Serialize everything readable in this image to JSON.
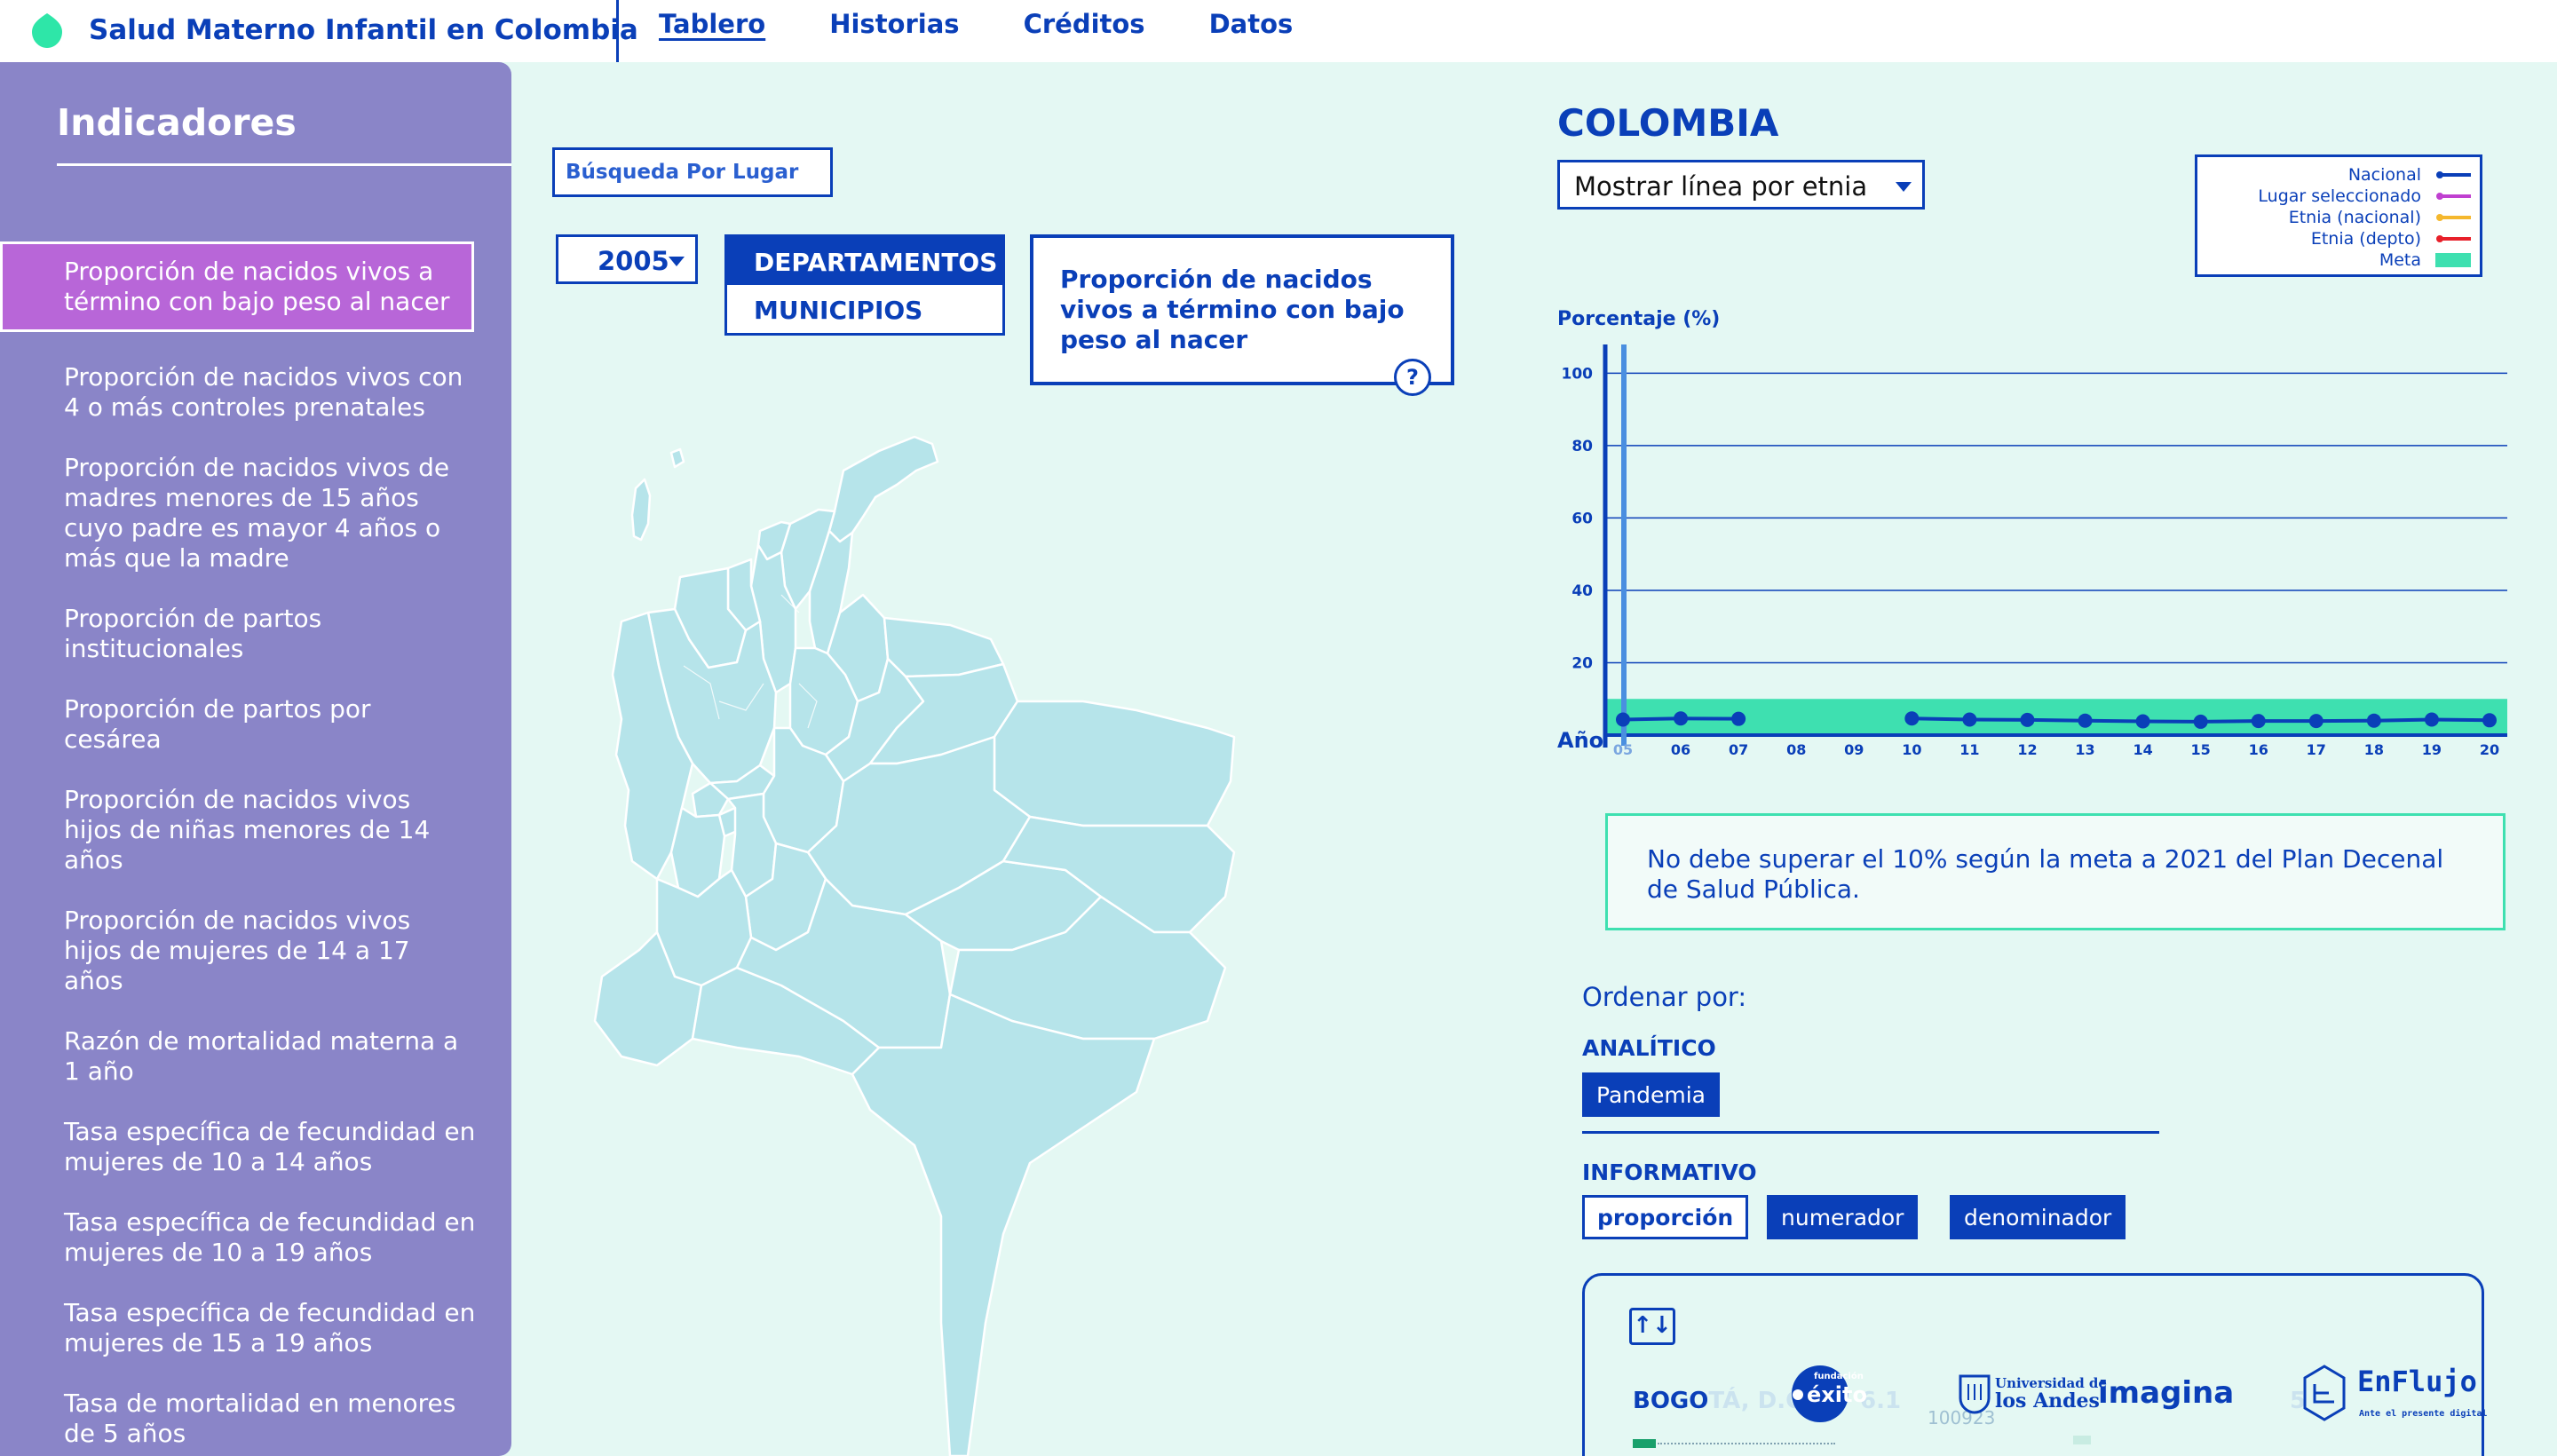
{
  "header": {
    "app_title": "Salud Materno Infantil en Colombia",
    "nav": [
      "Tablero",
      "Historias",
      "Créditos",
      "Datos"
    ],
    "active_nav": "Tablero",
    "accent": "#0a3fb8",
    "logo_color": "#2ee6a8"
  },
  "sidebar": {
    "title": "Indicadores",
    "background": "#8a85c8",
    "active_color": "#b866d8",
    "items": [
      "Proporción de nacidos vivos a término con bajo peso al nacer",
      "Proporción de nacidos vivos con 4 o más controles prenatales",
      "Proporción de nacidos vivos de madres menores de 15 años cuyo padre es mayor 4 años o más que la madre",
      "Proporción de partos institucionales",
      "Proporción de partos por cesárea",
      "Proporción de nacidos vivos hijos de niñas menores de 14 años",
      "Proporción de nacidos vivos hijos de mujeres de 14 a 17 años",
      "Razón de mortalidad materna a 1 año",
      "Tasa específica de fecundidad en mujeres de 10 a 14 años",
      "Tasa específica de fecundidad en mujeres de 10 a 19 años",
      "Tasa específica de fecundidad en mujeres de 15 a 19 años",
      "Tasa de mortalidad en menores de 5 años"
    ],
    "active_index": 0
  },
  "controls": {
    "search_label": "Búsqueda Por Lugar",
    "year": "2005",
    "geo_levels": [
      "DEPARTAMENTOS",
      "MUNICIPIOS"
    ],
    "geo_active": "DEPARTAMENTOS",
    "indicator_card": "Proporción de nacidos vivos a término con bajo peso al nacer",
    "help_label": "?"
  },
  "right": {
    "place_title": "COLOMBIA",
    "ethnic_select": "Mostrar línea por etnia",
    "legend": [
      {
        "label": "Nacional",
        "color": "#0a3fb8"
      },
      {
        "label": "Lugar seleccionado",
        "color": "#c040d0"
      },
      {
        "label": "Etnia (nacional)",
        "color": "#f5b82e"
      },
      {
        "label": "Etnia (depto)",
        "color": "#e8202a"
      },
      {
        "label": "Meta",
        "color": "#3ee0b0"
      }
    ],
    "note": "No debe superar el 10% según la meta a 2021 del Plan Decenal de Salud Pública.",
    "sort_label": "Ordenar por:",
    "analytic_label": "ANALÍTICO",
    "analytic_chips": [
      "Pandemia"
    ],
    "info_label": "INFORMATIVO",
    "info_chips": [
      "proporción",
      "numerador",
      "denominador"
    ],
    "info_active": "proporción"
  },
  "ranking": {
    "sort_icon": "↑↓",
    "place_visible": "BOGO",
    "place_faint": "TÁ, D.C.",
    "value": "6.1",
    "sub_value": "100923",
    "right_value": "5",
    "sponsors": {
      "exito_small": "fundación",
      "exito": "éxito",
      "andes_line1": "Universidad de",
      "andes_line2": "los Andes",
      "imagina": "imagina",
      "enflujo": "EnFlujo",
      "enflujo_sub": "Ante el presente digital"
    }
  },
  "chart_data": {
    "type": "line",
    "title": "",
    "ylabel": "Porcentaje (%)",
    "xlabel": "Año",
    "ylim": [
      0,
      105
    ],
    "yticks": [
      20,
      40,
      60,
      80,
      100
    ],
    "x": [
      "05",
      "06",
      "07",
      "08",
      "09",
      "10",
      "11",
      "12",
      "13",
      "14",
      "15",
      "16",
      "17",
      "18",
      "19",
      "20"
    ],
    "series": [
      {
        "name": "Nacional",
        "color": "#0a3fb8",
        "values": [
          4.3,
          4.6,
          4.5,
          null,
          null,
          4.6,
          4.3,
          4.2,
          4.0,
          3.8,
          3.7,
          3.9,
          3.9,
          4.0,
          4.3,
          4.1
        ]
      }
    ],
    "goal": {
      "name": "Meta",
      "max": 10,
      "color": "#3ee0b0"
    },
    "selected_x": "05"
  }
}
